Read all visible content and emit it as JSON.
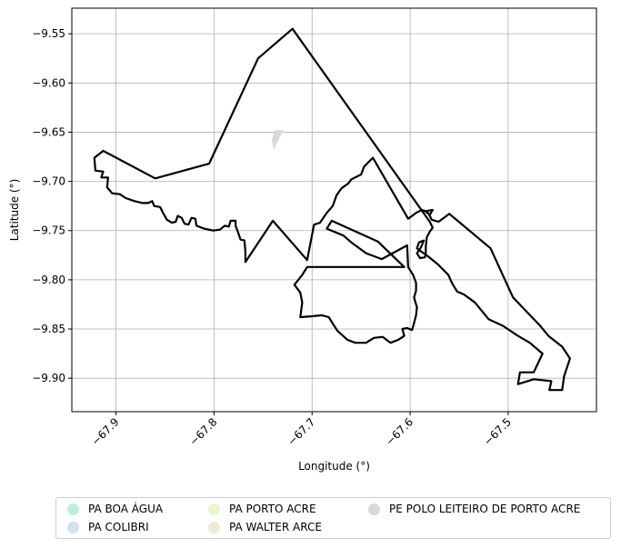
{
  "chart_data": {
    "type": "map",
    "xlabel": "Longitude (°)",
    "ylabel": "Latitude (°)",
    "xlim": [
      -67.945,
      -67.41
    ],
    "ylim": [
      -9.934,
      -9.524
    ],
    "x_ticks": [
      -67.9,
      -67.8,
      -67.7,
      -67.6,
      -67.5
    ],
    "x_tick_labels": [
      "−67.9",
      "−67.8",
      "−67.7",
      "−67.6",
      "−67.5"
    ],
    "y_ticks": [
      -9.55,
      -9.6,
      -9.65,
      -9.7,
      -9.75,
      -9.8,
      -9.85,
      -9.9
    ],
    "y_tick_labels": [
      "−9.55",
      "−9.60",
      "−9.65",
      "−9.70",
      "−9.75",
      "−9.80",
      "−9.85",
      "−9.90"
    ],
    "grid": true,
    "legend_position": "bottom-center",
    "legend": [
      {
        "label": "PA BOA ÁGUA",
        "color": "#bfeee0"
      },
      {
        "label": "PA COLIBRI",
        "color": "#d6e0f3"
      },
      {
        "label": "PA PORTO ACRE",
        "color": "#eaf6cf"
      },
      {
        "label": "PA WALTER ARCE",
        "color": "#f1eadb"
      },
      {
        "label": "PE POLO LEITEIRO DE PORTO ACRE",
        "color": "#d8d8d8"
      }
    ],
    "shapes": [
      {
        "name": "PA BOA ÁGUA",
        "fill": "none",
        "outline": "#000000",
        "points": [
          [
            -67.72,
            -9.545
          ],
          [
            -67.755,
            -9.575
          ],
          [
            -67.805,
            -9.682
          ],
          [
            -67.86,
            -9.697
          ],
          [
            -67.913,
            -9.669
          ],
          [
            -67.922,
            -9.676
          ],
          [
            -67.921,
            -9.689
          ],
          [
            -67.913,
            -9.69
          ],
          [
            -67.915,
            -9.696
          ],
          [
            -67.908,
            -9.696
          ],
          [
            -67.909,
            -9.706
          ],
          [
            -67.904,
            -9.712
          ],
          [
            -67.896,
            -9.713
          ],
          [
            -67.89,
            -9.717
          ],
          [
            -67.881,
            -9.72
          ],
          [
            -67.873,
            -9.722
          ],
          [
            -67.867,
            -9.722
          ],
          [
            -67.863,
            -9.72
          ],
          [
            -67.861,
            -9.725
          ],
          [
            -67.855,
            -9.726
          ],
          [
            -67.852,
            -9.732
          ],
          [
            -67.848,
            -9.739
          ],
          [
            -67.843,
            -9.742
          ],
          [
            -67.839,
            -9.741
          ],
          [
            -67.837,
            -9.735
          ],
          [
            -67.833,
            -9.737
          ],
          [
            -67.83,
            -9.743
          ],
          [
            -67.826,
            -9.744
          ],
          [
            -67.823,
            -9.737
          ],
          [
            -67.819,
            -9.738
          ],
          [
            -67.818,
            -9.745
          ],
          [
            -67.81,
            -9.748
          ],
          [
            -67.801,
            -9.75
          ],
          [
            -67.794,
            -9.749
          ],
          [
            -67.789,
            -9.745
          ],
          [
            -67.785,
            -9.746
          ],
          [
            -67.783,
            -9.74
          ],
          [
            -67.778,
            -9.74
          ],
          [
            -67.778,
            -9.745
          ],
          [
            -67.775,
            -9.753
          ],
          [
            -67.773,
            -9.759
          ],
          [
            -67.769,
            -9.76
          ],
          [
            -67.768,
            -9.771
          ],
          [
            -67.768,
            -9.782
          ],
          [
            -67.74,
            -9.74
          ],
          [
            -67.705,
            -9.78
          ],
          [
            -67.698,
            -9.744
          ],
          [
            -67.692,
            -9.742
          ],
          [
            -67.685,
            -9.732
          ],
          [
            -67.679,
            -9.725
          ],
          [
            -67.675,
            -9.714
          ],
          [
            -67.67,
            -9.707
          ],
          [
            -67.663,
            -9.702
          ],
          [
            -67.66,
            -9.698
          ],
          [
            -67.65,
            -9.693
          ],
          [
            -67.647,
            -9.685
          ],
          [
            -67.638,
            -9.676
          ],
          [
            -67.602,
            -9.738
          ],
          [
            -67.594,
            -9.732
          ],
          [
            -67.588,
            -9.729
          ],
          [
            -67.585,
            -9.73
          ],
          [
            -67.58,
            -9.734
          ],
          [
            -67.577,
            -9.729
          ],
          [
            -67.583,
            -9.73
          ],
          [
            -67.58,
            -9.735
          ],
          [
            -67.578,
            -9.739
          ],
          [
            -67.571,
            -9.741
          ],
          [
            -67.56,
            -9.733
          ],
          [
            -67.518,
            -9.768
          ],
          [
            -67.495,
            -9.818
          ],
          [
            -67.468,
            -9.846
          ],
          [
            -67.459,
            -9.857
          ],
          [
            -67.445,
            -9.868
          ],
          [
            -67.437,
            -9.88
          ],
          [
            -67.443,
            -9.898
          ],
          [
            -67.445,
            -9.912
          ],
          [
            -67.458,
            -9.912
          ],
          [
            -67.456,
            -9.903
          ],
          [
            -67.474,
            -9.901
          ],
          [
            -67.49,
            -9.906
          ],
          [
            -67.488,
            -9.894
          ],
          [
            -67.474,
            -9.894
          ],
          [
            -67.465,
            -9.875
          ],
          [
            -67.478,
            -9.864
          ],
          [
            -67.49,
            -9.857
          ],
          [
            -67.505,
            -9.847
          ],
          [
            -67.52,
            -9.84
          ],
          [
            -67.534,
            -9.823
          ],
          [
            -67.545,
            -9.815
          ],
          [
            -67.552,
            -9.812
          ],
          [
            -67.557,
            -9.804
          ],
          [
            -67.561,
            -9.795
          ],
          [
            -67.572,
            -9.784
          ],
          [
            -67.582,
            -9.776
          ],
          [
            -67.589,
            -9.771
          ],
          [
            -67.593,
            -9.768
          ],
          [
            -67.591,
            -9.762
          ],
          [
            -67.586,
            -9.76
          ],
          [
            -67.589,
            -9.767
          ],
          [
            -67.593,
            -9.773
          ],
          [
            -67.59,
            -9.778
          ],
          [
            -67.585,
            -9.777
          ],
          [
            -67.584,
            -9.774
          ],
          [
            -67.584,
            -9.766
          ],
          [
            -67.583,
            -9.757
          ],
          [
            -67.58,
            -9.751
          ],
          [
            -67.577,
            -9.747
          ],
          [
            -67.58,
            -9.741
          ],
          [
            -67.72,
            -9.545
          ]
        ]
      },
      {
        "name": "PA COLIBRI",
        "fill": "none",
        "outline": "#000000",
        "points": [
          [
            -67.705,
            -9.787
          ],
          [
            -67.71,
            -9.795
          ],
          [
            -67.718,
            -9.805
          ],
          [
            -67.712,
            -9.813
          ],
          [
            -67.71,
            -9.823
          ],
          [
            -67.712,
            -9.838
          ],
          [
            -67.7,
            -9.837
          ],
          [
            -67.69,
            -9.836
          ],
          [
            -67.683,
            -9.838
          ],
          [
            -67.678,
            -9.846
          ],
          [
            -67.674,
            -9.852
          ],
          [
            -67.664,
            -9.861
          ],
          [
            -67.656,
            -9.864
          ],
          [
            -67.645,
            -9.864
          ],
          [
            -67.637,
            -9.859
          ],
          [
            -67.628,
            -9.858
          ],
          [
            -67.62,
            -9.864
          ],
          [
            -67.612,
            -9.861
          ],
          [
            -67.606,
            -9.857
          ],
          [
            -67.608,
            -9.85
          ],
          [
            -67.603,
            -9.849
          ],
          [
            -67.598,
            -9.851
          ],
          [
            -67.596,
            -9.844
          ],
          [
            -67.594,
            -9.836
          ],
          [
            -67.593,
            -9.828
          ],
          [
            -67.596,
            -9.818
          ],
          [
            -67.594,
            -9.811
          ],
          [
            -67.594,
            -9.803
          ],
          [
            -67.597,
            -9.795
          ],
          [
            -67.602,
            -9.787
          ],
          [
            -67.603,
            -9.765
          ],
          [
            -67.629,
            -9.779
          ],
          [
            -67.645,
            -9.773
          ],
          [
            -67.66,
            -9.762
          ],
          [
            -67.668,
            -9.755
          ],
          [
            -67.685,
            -9.748
          ],
          [
            -67.68,
            -9.74
          ],
          [
            -67.633,
            -9.761
          ],
          [
            -67.606,
            -9.787
          ],
          [
            -67.705,
            -9.787
          ]
        ]
      },
      {
        "name": "PE POLO LEITEIRO DE PORTO ACRE",
        "fill": "#d8d8d8",
        "outline": "none",
        "points": [
          [
            -67.738,
            -9.648
          ],
          [
            -67.729,
            -9.648
          ],
          [
            -67.735,
            -9.659
          ],
          [
            -67.739,
            -9.668
          ],
          [
            -67.741,
            -9.658
          ]
        ]
      }
    ]
  }
}
